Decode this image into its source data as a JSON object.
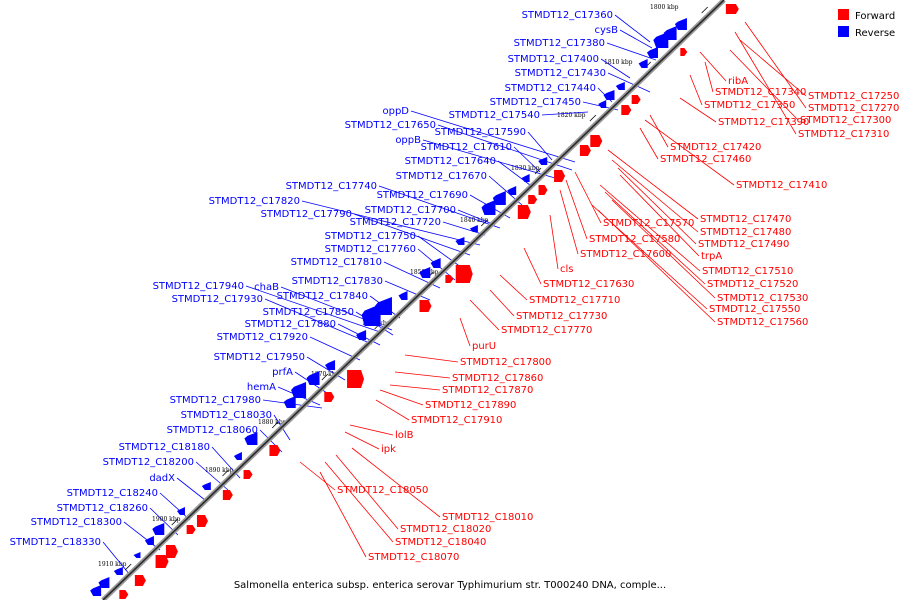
{
  "caption": "Salmonella enterica subsp. enterica serovar Typhimurium str. T000240 DNA, comple...",
  "legend": [
    {
      "label": "Forward",
      "color": "#ff0000"
    },
    {
      "label": "Reverse",
      "color": "#0000ff"
    }
  ],
  "ticks": [
    "1800 kbp",
    "1810 kbp",
    "1820 kbp",
    "1830 kbp",
    "1840 kbp",
    "1850 kbp",
    "1860 kbp",
    "1870 kbp",
    "1880 kbp",
    "1890 kbp",
    "1900 kbp",
    "1910 kbp"
  ],
  "reverse_labels": [
    "STMDT12_C17360",
    "cysB",
    "STMDT12_C17380",
    "STMDT12_C17400",
    "STMDT12_C17430",
    "STMDT12_C17440",
    "STMDT12_C17450",
    "oppD",
    "STMDT12_C17540",
    "STMDT12_C17650",
    "STMDT12_C17590",
    "oppB",
    "STMDT12_C17610",
    "STMDT12_C17640",
    "STMDT12_C17670",
    "STMDT12_C17740",
    "STMDT12_C17690",
    "STMDT12_C17820",
    "STMDT12_C17700",
    "STMDT12_C17790",
    "STMDT12_C17720",
    "STMDT12_C17750",
    "STMDT12_C17760",
    "STMDT12_C17810",
    "STMDT12_C17830",
    "STMDT12_C17940",
    "chaB",
    "STMDT12_C17840",
    "STMDT12_C17930",
    "STMDT12_C17850",
    "STMDT12_C17880",
    "STMDT12_C17920",
    "STMDT12_C17950",
    "prfA",
    "hemA",
    "STMDT12_C17980",
    "STMDT12_C18030",
    "STMDT12_C18060",
    "STMDT12_C18180",
    "STMDT12_C18200",
    "dadX",
    "STMDT12_C18240",
    "STMDT12_C18260",
    "STMDT12_C18300",
    "STMDT12_C18330"
  ],
  "forward_labels": [
    "ribA",
    "STMDT12_C17250",
    "STMDT12_C17340",
    "STMDT12_C17270",
    "STMDT12_C17350",
    "STMDT12_C17300",
    "STMDT12_C17390",
    "STMDT12_C17310",
    "STMDT12_C17420",
    "STMDT12_C17460",
    "STMDT12_C17410",
    "STMDT12_C17470",
    "STMDT12_C17570",
    "STMDT12_C17480",
    "STMDT12_C17580",
    "STMDT12_C17490",
    "STMDT12_C17600",
    "trpA",
    "cls",
    "STMDT12_C17510",
    "STMDT12_C17520",
    "STMDT12_C17630",
    "STMDT12_C17530",
    "STMDT12_C17710",
    "STMDT12_C17550",
    "STMDT12_C17730",
    "STMDT12_C17560",
    "STMDT12_C17770",
    "purU",
    "STMDT12_C17800",
    "STMDT12_C17860",
    "STMDT12_C17870",
    "STMDT12_C17890",
    "STMDT12_C17910",
    "lolB",
    "ipk",
    "STMDT12_C18050",
    "STMDT12_C18010",
    "STMDT12_C18020",
    "STMDT12_C18040",
    "STMDT12_C18070"
  ]
}
